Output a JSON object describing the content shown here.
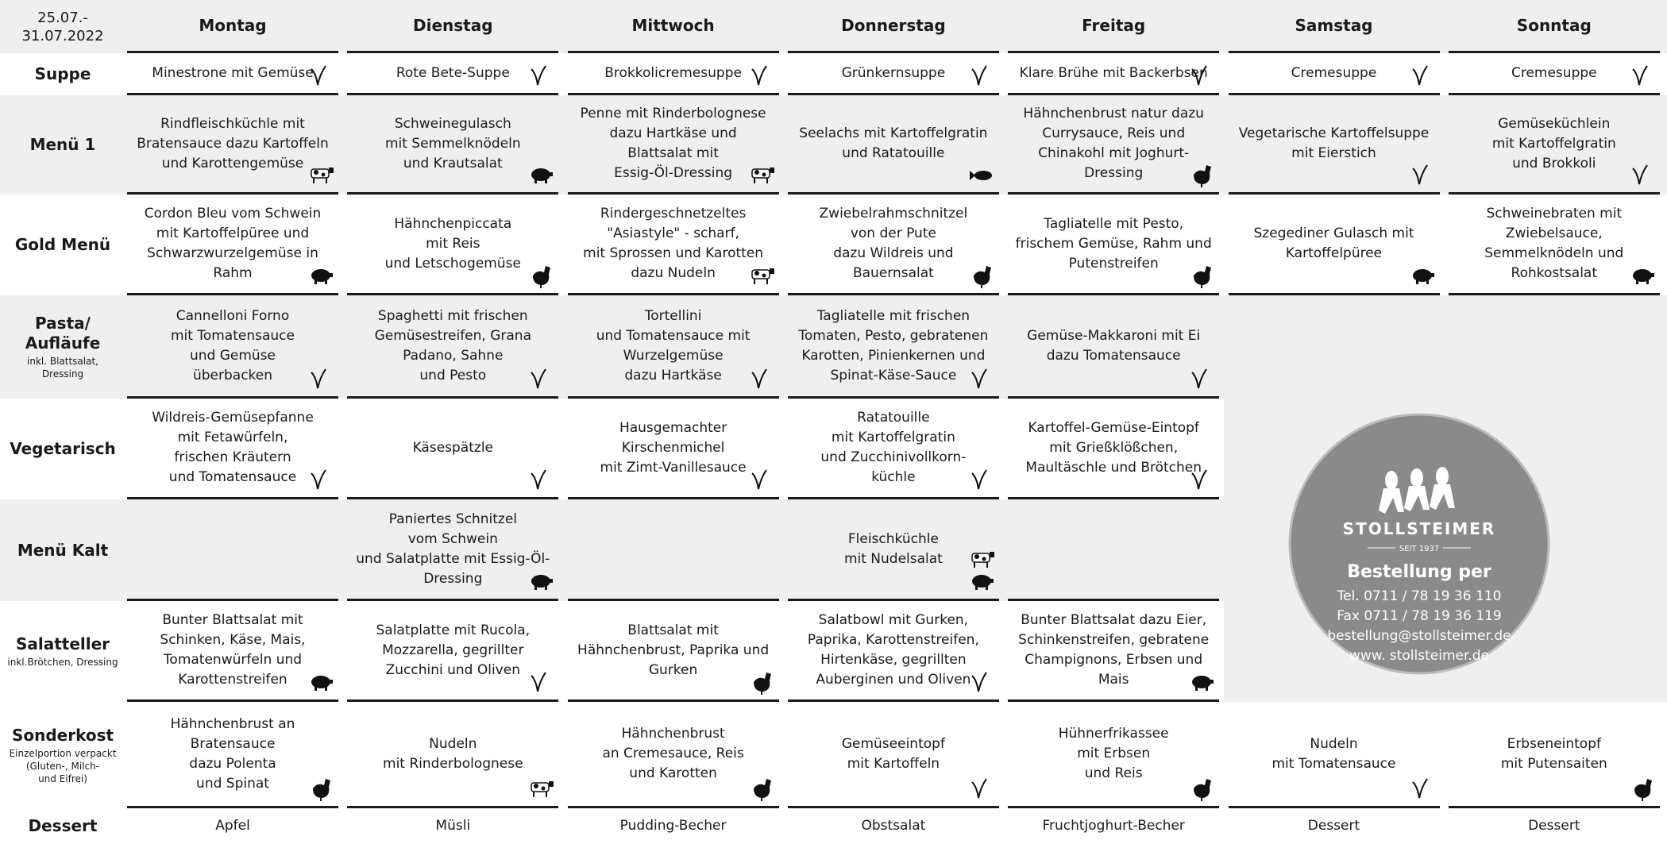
{
  "header": {
    "date": "25.07.-\n31.07.2022",
    "days": [
      "Montag",
      "Dienstag",
      "Mittwoch",
      "Donnerstag",
      "Freitag",
      "Samstag",
      "Sonntag"
    ]
  },
  "rows": [
    {
      "label": "Suppe",
      "cells": [
        "Minestrone mit Gemüse",
        "Rote Bete-Suppe",
        "Brokkolicremesuppe",
        "Grünkernsuppe",
        "Klare Brühe mit Backerbsen",
        "Cremesuppe",
        "Cremesuppe"
      ]
    },
    {
      "label": "Menü 1",
      "cells": [
        "Rindfleischküchle mit\nBratensauce dazu Kartoffeln\nund Karottengemüse",
        "Schweinegulasch\nmit Semmelknödeln\nund Krautsalat",
        "Penne mit Rinderbolognese\ndazu Hartkäse und\nBlattsalat mit\nEssig-Öl-Dressing",
        "Seelachs mit Kartoffelgratin\nund Ratatouille",
        "Hähnchenbrust natur dazu\nCurrysauce, Reis und\nChinakohl mit Joghurt-\nDressing",
        "Vegetarische Kartoffelsuppe\nmit Eierstich",
        "Gemüseküchlein\nmit Kartoffelgratin\nund Brokkoli"
      ]
    },
    {
      "label": "Gold Menü",
      "cells": [
        "Cordon Bleu  vom Schwein\nmit Kartoffelpüree und\nSchwarzwurzelgemüse in\nRahm",
        "Hähnchenpiccata\nmit Reis\nund Letschogemüse",
        "Rindergeschnetzeltes\n\"Asiastyle\" - scharf,\nmit Sprossen und Karotten\ndazu Nudeln",
        "Zwiebelrahmschnitzel\nvon der Pute\ndazu Wildreis und\nBauernsalat",
        "Tagliatelle mit Pesto,\nfrischem Gemüse, Rahm und\nPutenstreifen",
        "Szegediner Gulasch mit\nKartoffelpüree",
        "Schweinebraten mit\nZwiebelsauce,\nSemmelknödeln und\nRohkostsalat"
      ]
    },
    {
      "label": "Pasta/\nAufläufe",
      "note": "inkl. Blattsalat,\nDressing",
      "cells": [
        "Cannelloni Forno\nmit Tomatensauce\nund Gemüse\nüberbacken",
        "Spaghetti mit frischen\nGemüsestreifen, Grana\nPadano, Sahne\nund Pesto",
        "Tortellini\nund Tomatensauce mit\nWurzelgemüse\ndazu Hartkäse",
        "Tagliatelle mit frischen\nTomaten, Pesto, gebratenen\nKarotten, Pinienkernen und\nSpinat-Käse-Sauce",
        "Gemüse-Makkaroni mit Ei\ndazu Tomatensauce",
        null,
        null
      ]
    },
    {
      "label": "Vegetarisch",
      "cells": [
        "Wildreis-Gemüsepfanne\nmit Fetawürfeln,\nfrischen  Kräutern\nund Tomatensauce",
        "Käsespätzle",
        "Hausgemachter\nKirschenmichel\nmit Zimt-Vanillesauce",
        "Ratatouille\nmit Kartoffelgratin\nund Zucchinivollkorn-\nküchle",
        "Kartoffel-Gemüse-Eintopf\nmit Grießklößchen,\nMaultäschle und Brötchen",
        null,
        null
      ]
    },
    {
      "label": "Menü Kalt",
      "cells": [
        null,
        "Paniertes Schnitzel\nvom Schwein\nund Salatplatte mit Essig-Öl-\nDressing",
        null,
        "Fleischküchle\nmit Nudelsalat",
        null,
        null,
        null
      ]
    },
    {
      "label": "Salatteller",
      "note": "inkl.Brötchen, Dressing",
      "cells": [
        "Bunter Blattsalat mit\nSchinken, Käse, Mais,\nTomatenwürfeln und\nKarottenstreifen",
        "Salatplatte mit Rucola,\nMozzarella, gegrillter\nZucchini und Oliven",
        "Blattsalat mit\nHähnchenbrust, Paprika und\nGurken",
        "Salatbowl mit Gurken,\nPaprika, Karottenstreifen,\nHirtenkäse, gegrillten\nAuberginen und Oliven",
        "Bunter Blattsalat dazu Eier,\nSchinkenstreifen, gebratene\nChampignons, Erbsen und\nMais",
        null,
        null
      ]
    },
    {
      "label": "Sonderkost",
      "note": "Einzelportion verpackt\n(Gluten-, Milch-\nund Eifrei)",
      "cells": [
        "Hähnchenbrust an\nBratensauce\ndazu Polenta\nund Spinat",
        "Nudeln\nmit Rinderbolognese",
        "Hähnchenbrust\nan Cremesauce, Reis\nund Karotten",
        "Gemüseeintopf\nmit Kartoffeln",
        "Hühnerfrikassee\nmit Erbsen\nund Reis",
        "Nudeln\nmit Tomatensauce",
        "Erbseneintopf\nmit Putensaiten"
      ]
    },
    {
      "label": "Dessert",
      "cells": [
        "Apfel",
        "Müsli",
        "Pudding-Becher",
        "Obstsalat",
        "Fruchtjoghurt-Becher",
        "Dessert",
        "Dessert"
      ]
    }
  ],
  "logo": {
    "brand": "STOLLSTEIMER",
    "since": "SEIT 1937",
    "heading": "Bestellung per",
    "lines": [
      "Tel. 0711 / 78 19 36 110",
      "Fax 0711 / 78 19 36 119",
      "bestellung@stollsteimer.de",
      "www. stollsteimer.de"
    ]
  }
}
